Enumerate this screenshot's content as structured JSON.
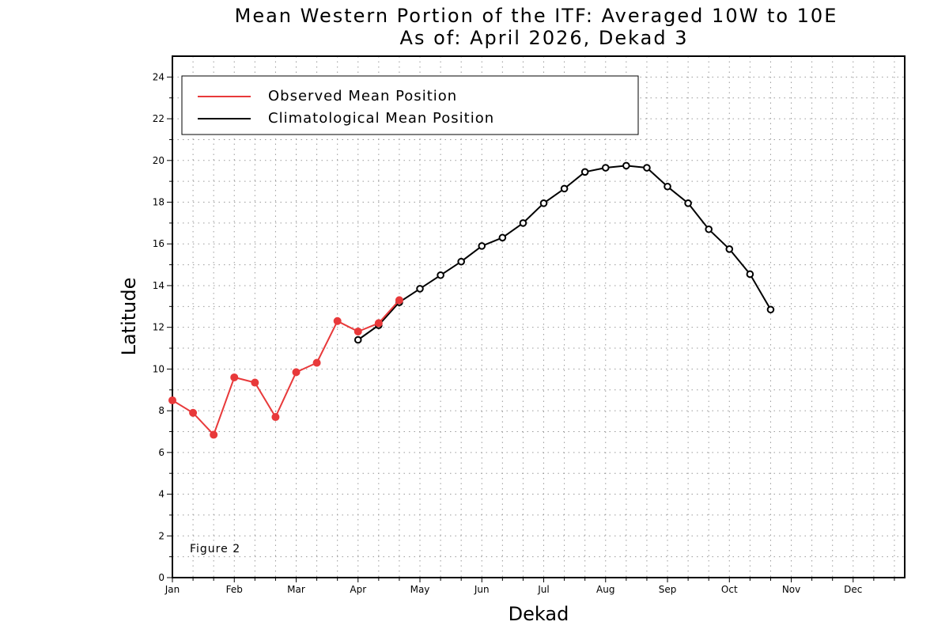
{
  "chart_data": {
    "type": "line",
    "title": "Mean Western Portion of the ITF: Averaged 10W to 10E",
    "subtitle": "As of: April 2026, Dekad 3",
    "xlabel": "Dekad",
    "ylabel": "Latitude",
    "x_tick_labels": [
      "Jan",
      "Feb",
      "Mar",
      "Apr",
      "May",
      "Jun",
      "Jul",
      "Aug",
      "Sep",
      "Oct",
      "Nov",
      "Dec"
    ],
    "x_range": [
      1,
      36.5
    ],
    "ylim": [
      0,
      25
    ],
    "y_ticks": [
      0,
      2,
      4,
      6,
      8,
      10,
      12,
      14,
      16,
      18,
      20,
      22,
      24
    ],
    "grid": true,
    "legend_position": "top-left",
    "annotation": "Figure 2",
    "series": [
      {
        "name": "Observed Mean Position",
        "color": "#e8393a",
        "marker": "filled-circle",
        "x": [
          1,
          2,
          3,
          4,
          5,
          6,
          7,
          8,
          9,
          10,
          11,
          12
        ],
        "values": [
          8.5,
          7.9,
          6.85,
          9.6,
          9.35,
          7.7,
          9.85,
          10.3,
          12.3,
          11.8,
          12.2,
          13.3
        ]
      },
      {
        "name": "Climatological Mean Position",
        "color": "#000000",
        "marker": "open-circle",
        "x": [
          10,
          11,
          12,
          13,
          14,
          15,
          16,
          17,
          18,
          19,
          20,
          21,
          22,
          23,
          24,
          25,
          26,
          27,
          28,
          29,
          30
        ],
        "values": [
          11.4,
          12.1,
          13.2,
          13.85,
          14.5,
          15.15,
          15.9,
          16.3,
          17.0,
          17.95,
          18.65,
          19.45,
          19.65,
          19.75,
          19.65,
          18.75,
          17.95,
          16.7,
          15.75,
          14.55,
          12.85
        ]
      }
    ]
  }
}
